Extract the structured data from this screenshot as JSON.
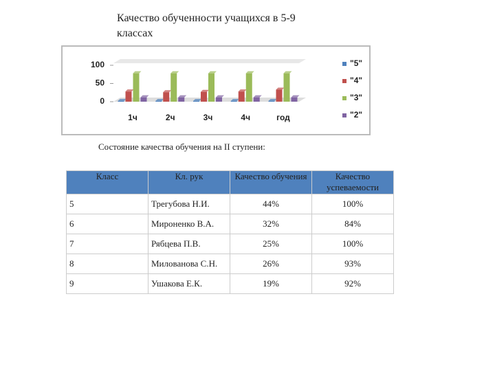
{
  "title": "Качество обученности учащихся в 5-9 классах",
  "chart_data": {
    "type": "bar",
    "categories": [
      "1ч",
      "2ч",
      "3ч",
      "4ч",
      "год"
    ],
    "series": [
      {
        "name": "\"5\"",
        "color": "#4f81bd",
        "values": [
          2,
          2,
          2,
          2,
          2
        ]
      },
      {
        "name": "\"4\"",
        "color": "#c0504d",
        "values": [
          28,
          26,
          27,
          28,
          33
        ]
      },
      {
        "name": "\"3\"",
        "color": "#9bbb59",
        "values": [
          78,
          78,
          78,
          78,
          78
        ]
      },
      {
        "name": "\"2\"",
        "color": "#8064a2",
        "values": [
          12,
          12,
          12,
          12,
          12
        ]
      }
    ],
    "ylim": [
      0,
      100
    ],
    "yticks": [
      0,
      50,
      100
    ],
    "legend": "right"
  },
  "subtitle": "Состояние качества обучения на II ступени:",
  "table": {
    "header": [
      "Класс",
      "Кл. рук",
      "Качество обучения",
      "Качество успеваемости"
    ],
    "rows": [
      [
        "5",
        "Трегубова Н.И.",
        "44%",
        "100%"
      ],
      [
        "6",
        "Мироненко В.А.",
        "32%",
        "84%"
      ],
      [
        "7",
        "Рябцева П.В.",
        "25%",
        "100%"
      ],
      [
        "8",
        "Милованова С.Н.",
        "26%",
        "93%"
      ],
      [
        "9",
        "Ушакова Е.К.",
        "19%",
        "92%"
      ]
    ]
  }
}
